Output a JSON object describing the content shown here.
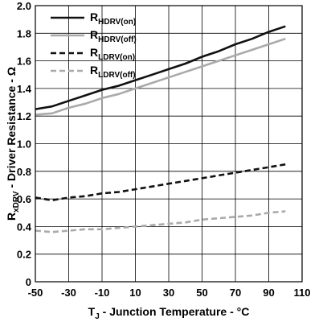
{
  "chart_data": {
    "type": "line",
    "xlabel": {
      "main": "T",
      "sub": "J",
      "rest": " - Junction Temperature - °C"
    },
    "ylabel": {
      "main": "R",
      "sub": "xDRV",
      "rest": " - Driver Resistance - Ω"
    },
    "xlim": [
      -50,
      110
    ],
    "ylim": [
      0,
      2.0
    ],
    "xticks": [
      -50,
      -30,
      -10,
      10,
      30,
      50,
      70,
      90,
      110
    ],
    "yticks": [
      0,
      0.2,
      0.4,
      0.6,
      0.8,
      1.0,
      1.2,
      1.4,
      1.6,
      1.8,
      2.0
    ],
    "ytick_labels": [
      "0",
      "0.2",
      "0.4",
      "0.6",
      "0.8",
      "1.0",
      "1.2",
      "1.4",
      "1.6",
      "1.8",
      "2.0"
    ],
    "xtick_labels": [
      "-50",
      "-30",
      "-10",
      "10",
      "30",
      "50",
      "70",
      "90",
      "110"
    ],
    "grid": true,
    "legend_position": "top-left",
    "series": [
      {
        "name": "R",
        "name_sub": "HDRV(on)",
        "color": "#111111",
        "dash": "solid",
        "x": [
          -50,
          -40,
          -30,
          -20,
          -10,
          0,
          10,
          20,
          30,
          40,
          50,
          60,
          70,
          80,
          90,
          100
        ],
        "y": [
          1.25,
          1.27,
          1.31,
          1.35,
          1.39,
          1.42,
          1.46,
          1.5,
          1.54,
          1.58,
          1.63,
          1.67,
          1.72,
          1.76,
          1.81,
          1.85
        ]
      },
      {
        "name": "R",
        "name_sub": "HDRV(off)",
        "color": "#aaaaaa",
        "dash": "solid",
        "x": [
          -50,
          -40,
          -30,
          -20,
          -10,
          0,
          10,
          20,
          30,
          40,
          50,
          60,
          70,
          80,
          90,
          100
        ],
        "y": [
          1.21,
          1.22,
          1.26,
          1.29,
          1.33,
          1.36,
          1.4,
          1.44,
          1.48,
          1.52,
          1.56,
          1.6,
          1.64,
          1.68,
          1.72,
          1.76
        ]
      },
      {
        "name": "R",
        "name_sub": "LDRV(on)",
        "color": "#111111",
        "dash": "dashed",
        "x": [
          -50,
          -40,
          -30,
          -20,
          -10,
          0,
          10,
          20,
          30,
          40,
          50,
          60,
          70,
          80,
          90,
          100
        ],
        "y": [
          0.61,
          0.59,
          0.61,
          0.62,
          0.64,
          0.65,
          0.67,
          0.69,
          0.71,
          0.73,
          0.75,
          0.77,
          0.79,
          0.81,
          0.83,
          0.85
        ]
      },
      {
        "name": "R",
        "name_sub": "LDRV(off)",
        "color": "#aaaaaa",
        "dash": "dashed",
        "x": [
          -50,
          -40,
          -30,
          -20,
          -10,
          0,
          10,
          20,
          30,
          40,
          50,
          60,
          70,
          80,
          90,
          100
        ],
        "y": [
          0.37,
          0.36,
          0.37,
          0.38,
          0.38,
          0.39,
          0.4,
          0.41,
          0.42,
          0.43,
          0.45,
          0.46,
          0.47,
          0.48,
          0.5,
          0.51
        ]
      }
    ]
  }
}
